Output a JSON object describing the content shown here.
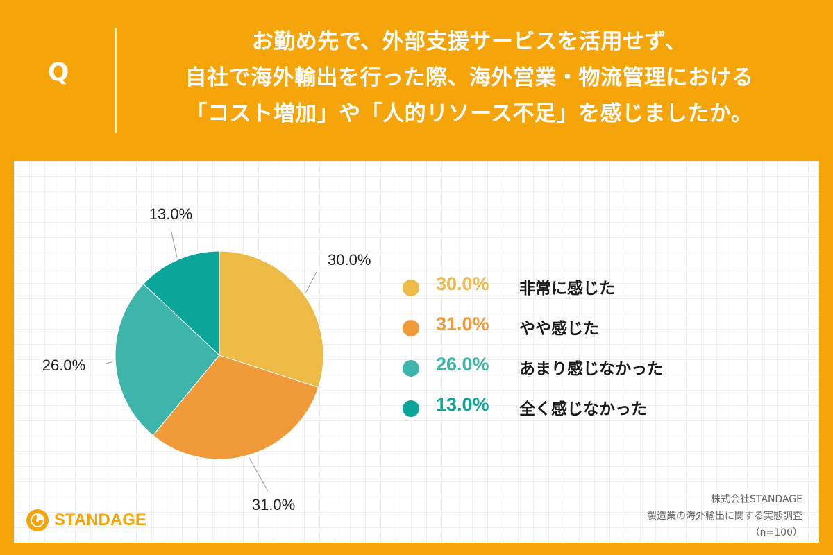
{
  "question": {
    "q_label": "Q",
    "lines": [
      "お勤め先で、外部支援サービスを活用せず、",
      "自社で海外輸出を行った際、海外営業・物流管理における",
      "「コスト増加」や「人的リソース不足」を感じましたか。"
    ]
  },
  "chart_data": {
    "type": "pie",
    "title": "",
    "start_angle": "12 o'clock",
    "direction": "clockwise",
    "slices": [
      {
        "label": "非常に感じた",
        "value": 30.0,
        "display": "30.0%",
        "color": "#EDBA45"
      },
      {
        "label": "やや感じた",
        "value": 31.0,
        "display": "31.0%",
        "color": "#F09A3A"
      },
      {
        "label": "あまり感じなかった",
        "value": 26.0,
        "display": "26.0%",
        "color": "#3DB5AA"
      },
      {
        "label": "全く感じなかった",
        "value": 13.0,
        "display": "13.0%",
        "color": "#0BA59A"
      }
    ],
    "legend_value_colors": [
      "#EDBA45",
      "#F09A3A",
      "#3DB5AA",
      "#0BA59A"
    ],
    "legend_placement": "right",
    "grid": false
  },
  "logo": {
    "text": "STANDAGE",
    "icon": "standage-logo-icon"
  },
  "source": {
    "company": "株式会社STANDAGE",
    "survey": "製造業の海外輸出に関する実態調査",
    "sample": "（n=100）"
  }
}
